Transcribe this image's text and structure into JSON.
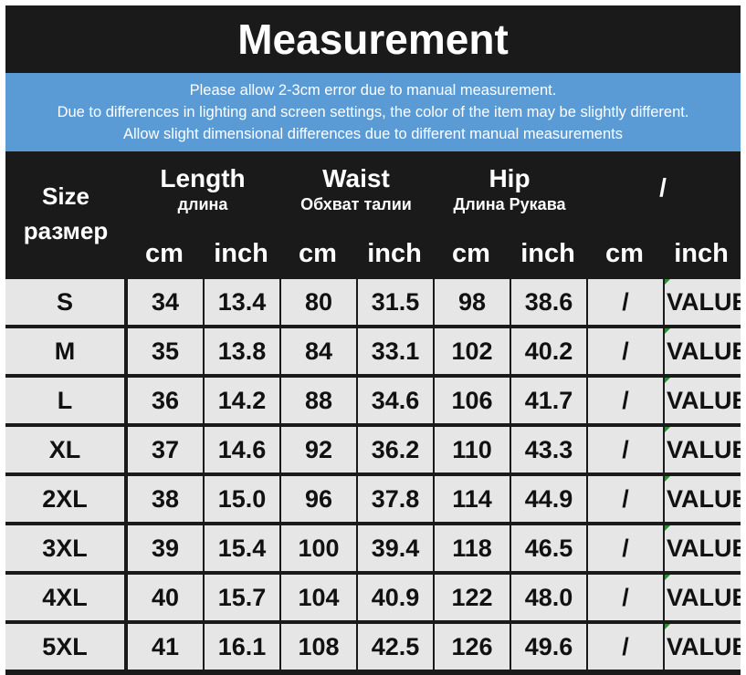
{
  "title": "Measurement",
  "notice": [
    "Please allow 2-3cm error due to manual measurement.",
    "Due to differences in lighting and screen settings, the color of the item may be slightly different.",
    "Allow slight dimensional differences due to different manual measurements"
  ],
  "header": {
    "size_en": "Size",
    "size_ru": "размер",
    "groups": [
      {
        "en": "Length",
        "ru": "длина"
      },
      {
        "en": "Waist",
        "ru": "Обхват талии"
      },
      {
        "en": "Hip",
        "ru": "Длина Рукава"
      },
      {
        "en": "/",
        "ru": ""
      }
    ],
    "units": [
      "cm",
      "inch",
      "cm",
      "inch",
      "cm",
      "inch",
      "cm",
      "inch"
    ]
  },
  "colors": {
    "header_bg": "#1a1a1a",
    "notice_bg": "#5b9bd5",
    "cell_bg": "#e6e6e6"
  },
  "rows": [
    {
      "size": "S",
      "values": [
        "34",
        "13.4",
        "80",
        "31.5",
        "98",
        "38.6",
        "/",
        "VALUE"
      ]
    },
    {
      "size": "M",
      "values": [
        "35",
        "13.8",
        "84",
        "33.1",
        "102",
        "40.2",
        "/",
        "VALUE"
      ]
    },
    {
      "size": "L",
      "values": [
        "36",
        "14.2",
        "88",
        "34.6",
        "106",
        "41.7",
        "/",
        "VALUE"
      ]
    },
    {
      "size": "XL",
      "values": [
        "37",
        "14.6",
        "92",
        "36.2",
        "110",
        "43.3",
        "/",
        "VALUE"
      ]
    },
    {
      "size": "2XL",
      "values": [
        "38",
        "15.0",
        "96",
        "37.8",
        "114",
        "44.9",
        "/",
        "VALUE"
      ]
    },
    {
      "size": "3XL",
      "values": [
        "39",
        "15.4",
        "100",
        "39.4",
        "118",
        "46.5",
        "/",
        "VALUE"
      ]
    },
    {
      "size": "4XL",
      "values": [
        "40",
        "15.7",
        "104",
        "40.9",
        "122",
        "48.0",
        "/",
        "VALUE"
      ]
    },
    {
      "size": "5XL",
      "values": [
        "41",
        "16.1",
        "108",
        "42.5",
        "126",
        "49.6",
        "/",
        "VALUE"
      ]
    }
  ]
}
